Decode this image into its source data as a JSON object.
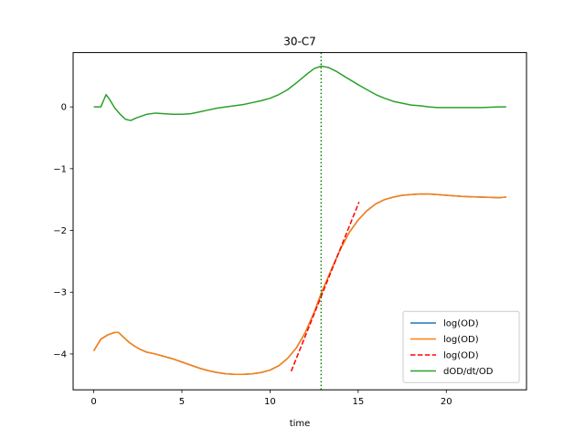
{
  "chart_data": {
    "type": "line",
    "title": "30-C7",
    "xlabel": "time",
    "ylabel": "",
    "xlim": [
      -1.17,
      24.55
    ],
    "ylim": [
      -4.58,
      0.88
    ],
    "xticks": [
      0,
      5,
      10,
      15,
      20
    ],
    "xtick_labels": [
      "0",
      "5",
      "10",
      "15",
      "20"
    ],
    "yticks": [
      0,
      -1,
      -2,
      -3,
      -4
    ],
    "ytick_labels": [
      "0",
      "−1",
      "−2",
      "−3",
      "−4"
    ],
    "grid": false,
    "legend_position": "lower-right",
    "vline": {
      "x": 12.9,
      "color": "#008000",
      "style": "dotted"
    },
    "series": [
      {
        "name": "log(OD)",
        "color": "#1f77b4",
        "style": "solid",
        "x": [
          0,
          0.4,
          0.8,
          1.2,
          1.4,
          1.7,
          2.0,
          2.3,
          2.6,
          3.0,
          3.5,
          4.0,
          4.5,
          5.0,
          5.5,
          6.0,
          6.5,
          7.0,
          7.5,
          8.0,
          8.5,
          9.0,
          9.5,
          10.0,
          10.5,
          11.0,
          11.5,
          12.0,
          12.5,
          12.9,
          13.5,
          14.0,
          14.5,
          15.0,
          15.5,
          16.0,
          16.5,
          17.0,
          17.5,
          18.0,
          18.5,
          19.0,
          19.5,
          20.0,
          21.0,
          22.0,
          23.0,
          23.4
        ],
        "y": [
          -3.95,
          -3.76,
          -3.69,
          -3.65,
          -3.65,
          -3.73,
          -3.81,
          -3.87,
          -3.92,
          -3.97,
          -4.0,
          -4.04,
          -4.08,
          -4.13,
          -4.18,
          -4.23,
          -4.27,
          -4.3,
          -4.32,
          -4.33,
          -4.33,
          -4.32,
          -4.3,
          -4.26,
          -4.19,
          -4.07,
          -3.9,
          -3.65,
          -3.33,
          -3.02,
          -2.62,
          -2.3,
          -2.03,
          -1.83,
          -1.68,
          -1.57,
          -1.5,
          -1.46,
          -1.43,
          -1.42,
          -1.41,
          -1.41,
          -1.42,
          -1.43,
          -1.45,
          -1.46,
          -1.47,
          -1.46
        ]
      },
      {
        "name": "log(OD)",
        "color": "#ff7f0e",
        "style": "solid",
        "x": [
          0,
          0.4,
          0.8,
          1.2,
          1.4,
          1.7,
          2.0,
          2.3,
          2.6,
          3.0,
          3.5,
          4.0,
          4.5,
          5.0,
          5.5,
          6.0,
          6.5,
          7.0,
          7.5,
          8.0,
          8.5,
          9.0,
          9.5,
          10.0,
          10.5,
          11.0,
          11.5,
          12.0,
          12.5,
          12.9,
          13.5,
          14.0,
          14.5,
          15.0,
          15.5,
          16.0,
          16.5,
          17.0,
          17.5,
          18.0,
          18.5,
          19.0,
          19.5,
          20.0,
          21.0,
          22.0,
          23.0,
          23.4
        ],
        "y": [
          -3.95,
          -3.76,
          -3.69,
          -3.65,
          -3.65,
          -3.73,
          -3.81,
          -3.87,
          -3.92,
          -3.97,
          -4.0,
          -4.04,
          -4.08,
          -4.13,
          -4.18,
          -4.23,
          -4.27,
          -4.3,
          -4.32,
          -4.33,
          -4.33,
          -4.32,
          -4.3,
          -4.26,
          -4.19,
          -4.07,
          -3.9,
          -3.65,
          -3.33,
          -3.02,
          -2.62,
          -2.3,
          -2.03,
          -1.83,
          -1.68,
          -1.57,
          -1.5,
          -1.46,
          -1.43,
          -1.42,
          -1.41,
          -1.41,
          -1.42,
          -1.43,
          -1.45,
          -1.46,
          -1.47,
          -1.46
        ]
      },
      {
        "name": "log(OD)",
        "color": "#ff0000",
        "style": "dashed",
        "x": [
          11.2,
          15.05
        ],
        "y": [
          -4.28,
          -1.54
        ]
      },
      {
        "name": "dOD/dt/OD",
        "color": "#2ca02c",
        "style": "solid",
        "x": [
          0,
          0.4,
          0.7,
          0.9,
          1.2,
          1.5,
          1.8,
          2.1,
          2.4,
          2.7,
          3.0,
          3.5,
          4.0,
          4.5,
          5.0,
          5.5,
          6.0,
          6.5,
          7.0,
          7.5,
          8.0,
          8.5,
          9.0,
          9.5,
          10.0,
          10.5,
          11.0,
          11.5,
          12.0,
          12.5,
          12.9,
          13.3,
          13.8,
          14.3,
          15.0,
          15.5,
          16.0,
          16.5,
          17.0,
          17.5,
          18.0,
          18.5,
          19.0,
          19.5,
          20.0,
          21.0,
          22.0,
          23.0,
          23.4
        ],
        "y": [
          0.0,
          0.0,
          0.2,
          0.12,
          -0.02,
          -0.12,
          -0.2,
          -0.22,
          -0.18,
          -0.15,
          -0.12,
          -0.1,
          -0.11,
          -0.12,
          -0.12,
          -0.11,
          -0.08,
          -0.05,
          -0.02,
          0.0,
          0.02,
          0.04,
          0.07,
          0.1,
          0.14,
          0.2,
          0.28,
          0.39,
          0.51,
          0.62,
          0.66,
          0.64,
          0.57,
          0.48,
          0.36,
          0.28,
          0.2,
          0.14,
          0.09,
          0.06,
          0.03,
          0.02,
          0.0,
          -0.01,
          -0.01,
          -0.01,
          -0.01,
          0.0,
          0.0
        ]
      }
    ]
  }
}
